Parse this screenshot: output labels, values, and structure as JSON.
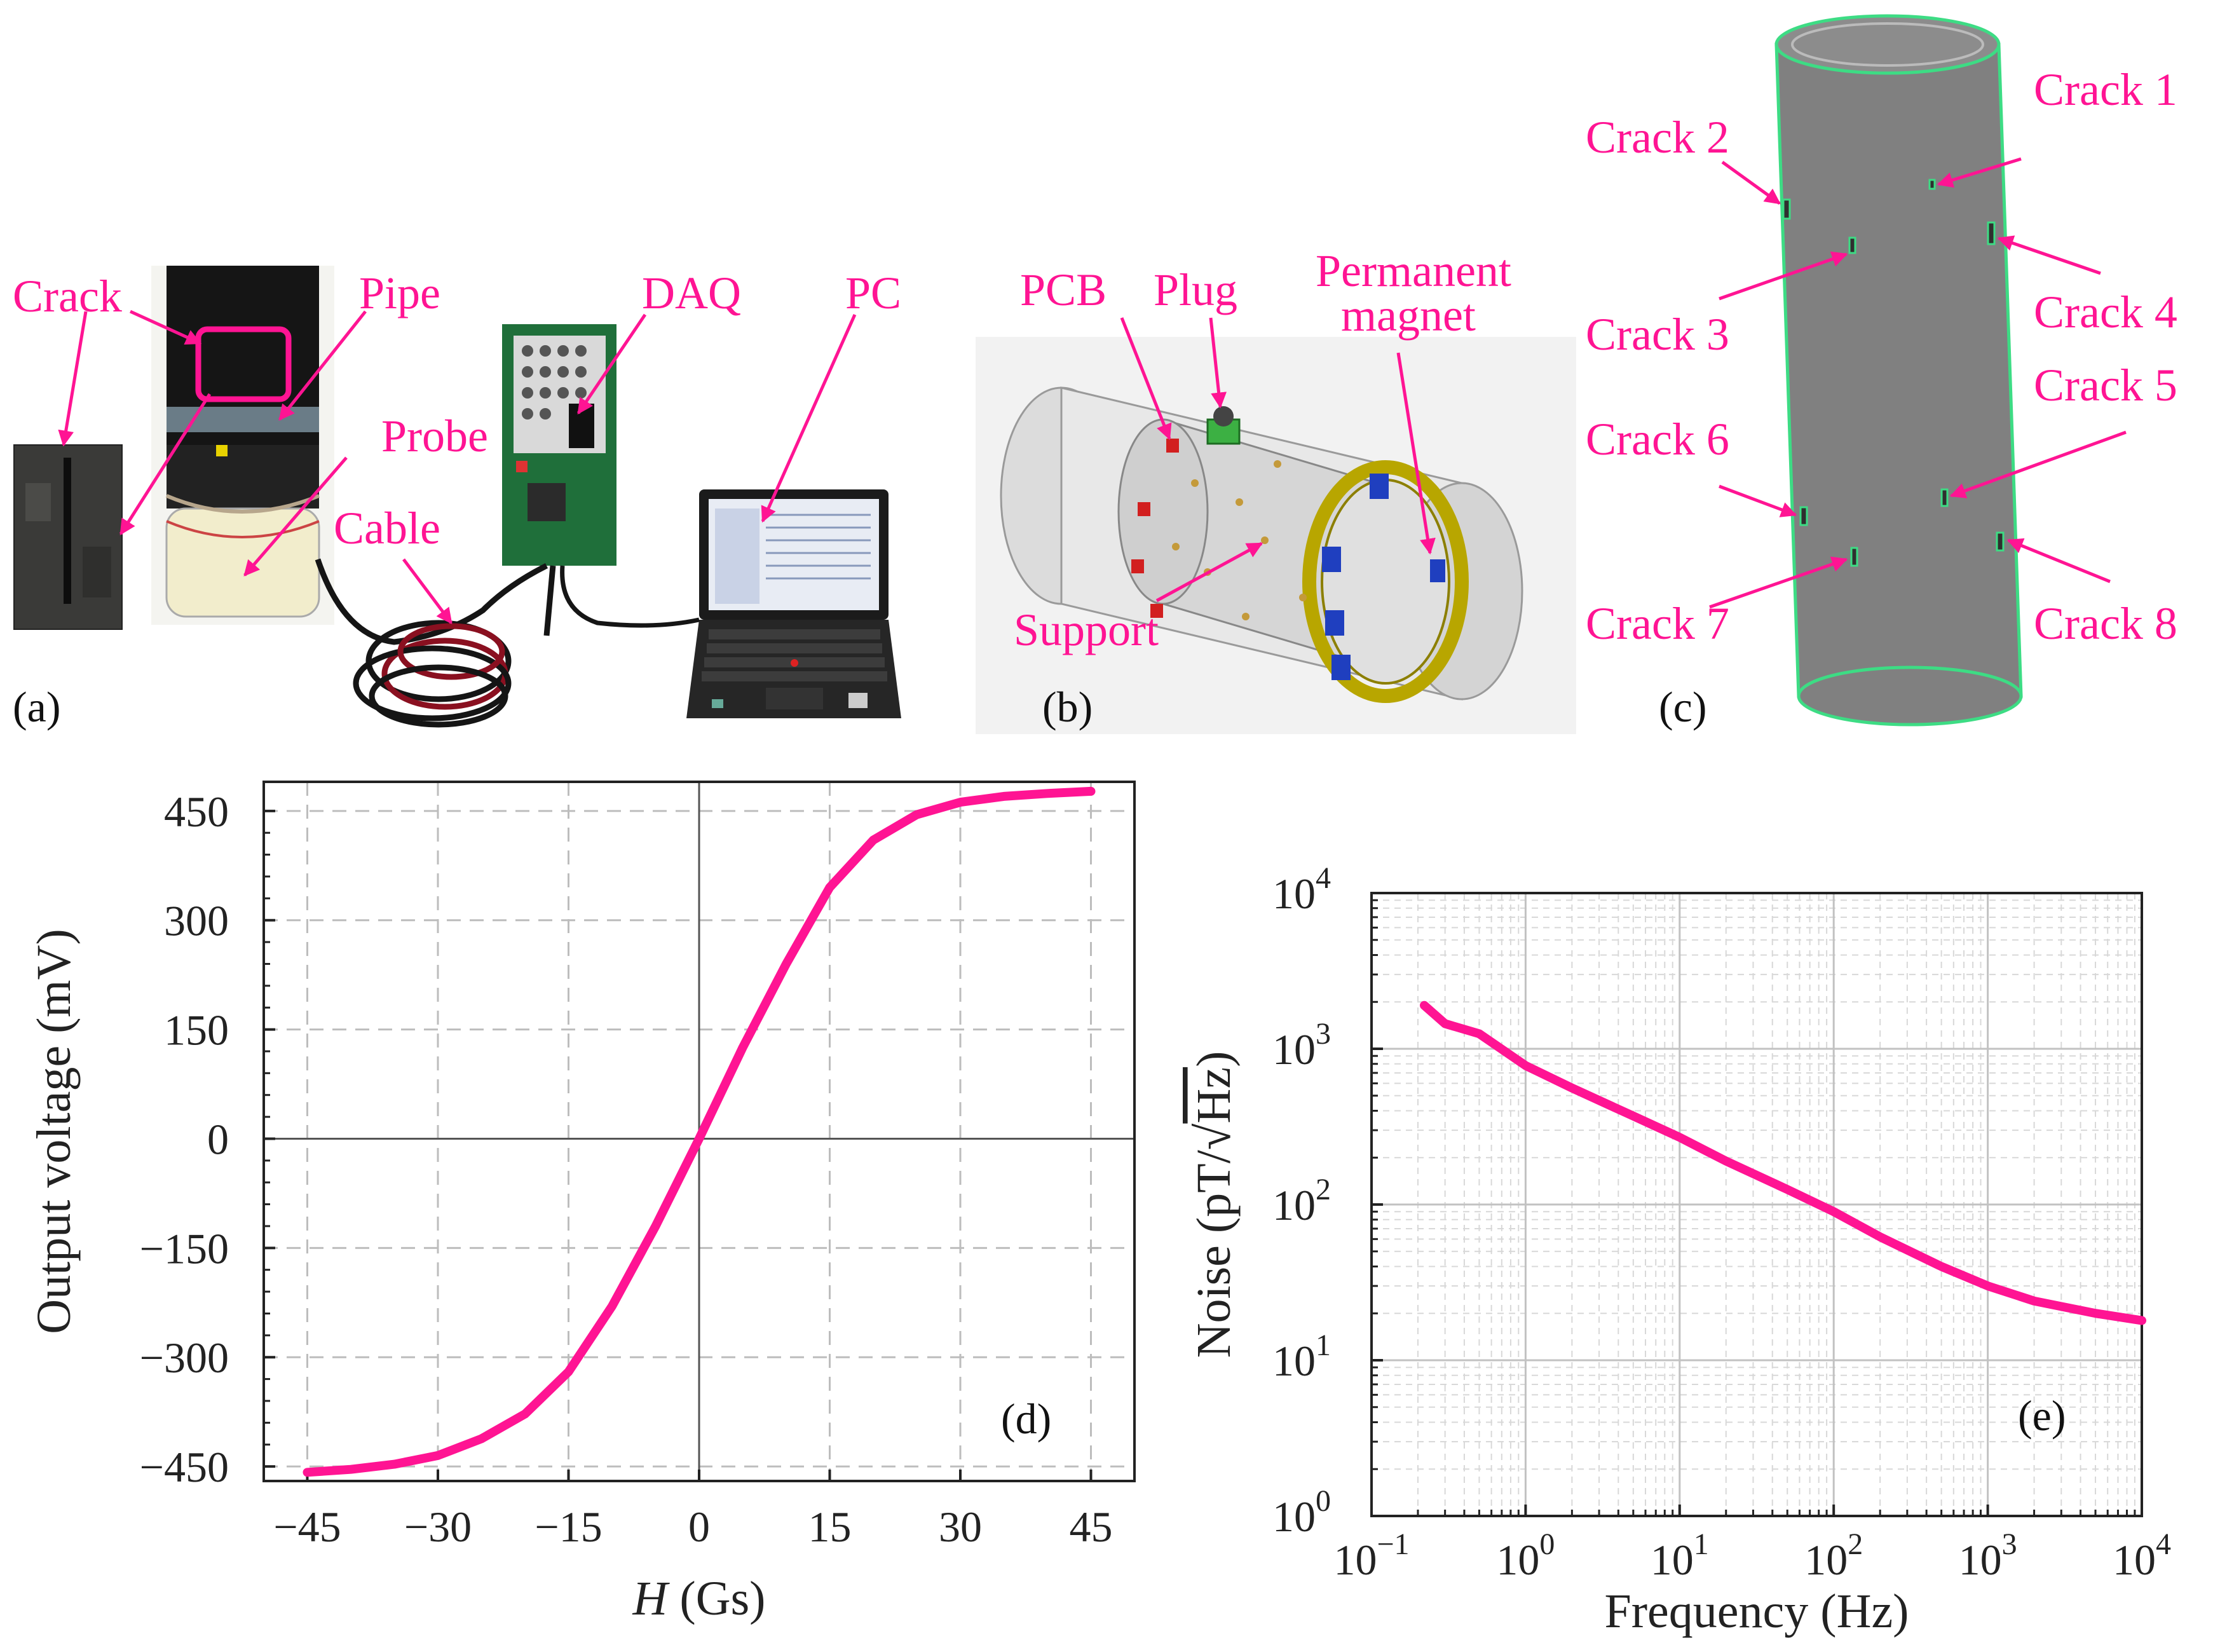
{
  "colors": {
    "accent": "#ff1493",
    "cylinder": "#808080",
    "crack": "#3ddc84"
  },
  "panels": {
    "a": {
      "label": "(a)",
      "annotations": {
        "crack": "Crack",
        "pipe": "Pipe",
        "probe": "Probe",
        "cable": "Cable",
        "daq": "DAQ",
        "pc": "PC"
      }
    },
    "b": {
      "label": "(b)",
      "annotations": {
        "pcb": "PCB",
        "plug": "Plug",
        "magnet_line1": "Permanent",
        "magnet_line2": "magnet",
        "support": "Support"
      }
    },
    "c": {
      "label": "(c)",
      "cracks": [
        "Crack 1",
        "Crack 2",
        "Crack 3",
        "Crack 4",
        "Crack 5",
        "Crack 6",
        "Crack 7",
        "Crack 8"
      ]
    },
    "d": {
      "label": "(d)"
    },
    "e": {
      "label": "(e)"
    }
  },
  "chart_data": [
    {
      "id": "d",
      "type": "line",
      "xlabel_italic": "H",
      "xlabel_unit": " (Gs)",
      "ylabel": "Output voltage (mV)",
      "xlim": [
        -50,
        50
      ],
      "ylim": [
        -470,
        490
      ],
      "xticks": [
        -45,
        -30,
        -15,
        0,
        15,
        30,
        45
      ],
      "xtick_labels": [
        "−45",
        "−30",
        "−15",
        "0",
        "15",
        "30",
        "45"
      ],
      "yticks": [
        -450,
        -300,
        -150,
        0,
        150,
        300,
        450
      ],
      "ytick_labels": [
        "−450",
        "−300",
        "−150",
        "0",
        "150",
        "300",
        "450"
      ],
      "grid": true,
      "series": [
        {
          "x": [
            -45,
            -40,
            -35,
            -30,
            -25,
            -20,
            -15,
            -10,
            -5,
            0,
            5,
            10,
            15,
            20,
            25,
            30,
            35,
            40,
            45
          ],
          "y": [
            -458,
            -454,
            -447,
            -435,
            -412,
            -378,
            -320,
            -230,
            -120,
            0,
            125,
            240,
            345,
            410,
            445,
            462,
            470,
            474,
            477
          ]
        }
      ]
    },
    {
      "id": "e",
      "type": "line",
      "scale": "log-log",
      "xlabel": "Frequency (Hz)",
      "ylabel_prefix": "Noise (pT/",
      "ylabel_sqrt": "Hz",
      "ylabel_suffix": ")",
      "xlim": [
        0.1,
        10000
      ],
      "ylim": [
        1,
        10000
      ],
      "xtick_bases": [
        "10",
        "10",
        "10",
        "10",
        "10",
        "10"
      ],
      "xtick_exps": [
        "−1",
        "0",
        "1",
        "2",
        "3",
        "4"
      ],
      "ytick_bases": [
        "10",
        "10",
        "10",
        "10",
        "10"
      ],
      "ytick_exps": [
        "0",
        "1",
        "2",
        "3",
        "4"
      ],
      "grid": true,
      "series": [
        {
          "x": [
            0.22,
            0.3,
            0.5,
            1,
            2,
            5,
            10,
            20,
            50,
            100,
            200,
            500,
            1000,
            2000,
            5000,
            10000
          ],
          "y": [
            1900,
            1450,
            1250,
            780,
            560,
            370,
            270,
            190,
            125,
            90,
            62,
            40,
            30,
            24,
            20,
            18
          ]
        }
      ]
    }
  ]
}
